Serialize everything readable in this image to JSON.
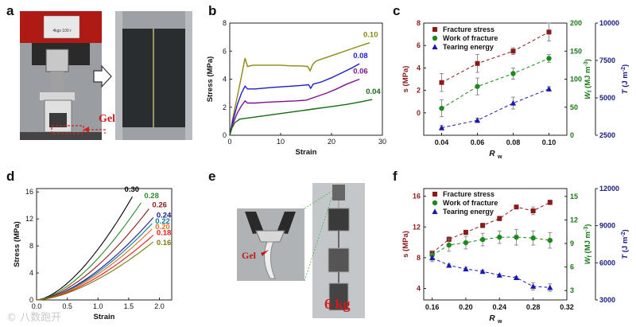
{
  "panels": {
    "a": "a",
    "b": "b",
    "c": "c",
    "d": "d",
    "e": "e",
    "f": "f"
  },
  "photos": {
    "a_gel_label": "Gel",
    "a_machine_text": "4kgs 100 r",
    "e_gel_label": "Gel",
    "e_weight_label": "6 kg"
  },
  "watermark": "© 八数跑开",
  "colors": {
    "olive": "#8a8a10",
    "blue": "#1a1ad0",
    "purple": "#801090",
    "green": "#156b15",
    "darkred": "#8b1a1a",
    "marker_red": "#8b1a1a",
    "marker_green": "#1a8a1a",
    "marker_blue": "#1a1ab0",
    "axis_green": "#1a7a1a",
    "axis_navy": "#1a1a80"
  },
  "chart_data": [
    {
      "id": "b",
      "type": "line",
      "xlabel": "Strain",
      "ylabel": "Stress (MPa)",
      "xlim": [
        0,
        30
      ],
      "ylim": [
        0,
        8
      ],
      "xticks": [
        0,
        10,
        20,
        30
      ],
      "yticks": [
        0,
        2,
        4,
        6,
        8
      ],
      "series": [
        {
          "name": "0.10",
          "color": "#8a8a10",
          "x": [
            0,
            0.6,
            1.5,
            2.3,
            3,
            3.5,
            4.5,
            6,
            8,
            10,
            12,
            14,
            15.3,
            15.8,
            16.3,
            17,
            19,
            21,
            23,
            25,
            27.5
          ],
          "y": [
            0,
            1.2,
            2.8,
            4.2,
            5.5,
            4.9,
            5,
            5,
            5,
            5,
            4.95,
            4.95,
            4.9,
            4.6,
            5.05,
            5.3,
            5.55,
            5.8,
            6.05,
            6.3,
            6.6
          ]
        },
        {
          "name": "0.08",
          "color": "#1a1ad0",
          "x": [
            0,
            0.6,
            1.5,
            2.3,
            3,
            3.5,
            5,
            8,
            10,
            12,
            14,
            15.5,
            15.9,
            16.4,
            18,
            20,
            22,
            24,
            25.5
          ],
          "y": [
            0,
            1,
            2.2,
            3,
            3.5,
            3.3,
            3.3,
            3.4,
            3.45,
            3.5,
            3.55,
            3.6,
            3.35,
            3.65,
            3.8,
            4.1,
            4.45,
            4.8,
            5.1
          ]
        },
        {
          "name": "0.06",
          "color": "#801090",
          "x": [
            0,
            0.6,
            1.5,
            2.3,
            3,
            3.5,
            5,
            7,
            10,
            13,
            15,
            17,
            19,
            21,
            23,
            25.5
          ],
          "y": [
            0,
            0.8,
            1.6,
            2.1,
            2.45,
            2.3,
            2.3,
            2.35,
            2.4,
            2.45,
            2.5,
            2.75,
            3,
            3.3,
            3.65,
            4
          ]
        },
        {
          "name": "0.04",
          "color": "#156b15",
          "x": [
            0,
            0.4,
            1,
            2,
            3,
            5,
            8,
            11,
            14,
            17,
            20,
            23,
            26,
            28
          ],
          "y": [
            0,
            0.5,
            0.9,
            1.15,
            1.2,
            1.3,
            1.45,
            1.6,
            1.75,
            1.9,
            2.05,
            2.2,
            2.4,
            2.55
          ]
        }
      ],
      "labels": [
        "0.10",
        "0.08",
        "0.06",
        "0.04"
      ]
    },
    {
      "id": "c",
      "type": "scatter",
      "xlabel": "R",
      "xlabel_sub": "w",
      "x": [
        0.04,
        0.06,
        0.08,
        0.1
      ],
      "xticks": [
        "0.04",
        "0.06",
        "0.08",
        "0.10"
      ],
      "xlim": [
        0.03,
        0.11
      ],
      "axes": [
        {
          "label": "s (MPa)",
          "ylim": [
            -2,
            8
          ],
          "ticks": [
            0,
            2,
            4,
            6,
            8
          ]
        },
        {
          "label": "Wf (MJ m-3)",
          "label_main": "W",
          "label_sub": "f",
          "label_unit": "(MJ m",
          "label_sup": "-3",
          "label_close": ")",
          "ylim": [
            0,
            200
          ],
          "ticks": [
            0,
            50,
            100,
            150,
            200
          ]
        },
        {
          "label": "T (J m-2)",
          "label_main": "T",
          "label_unit": "(J m",
          "label_sup": "-2",
          "label_close": ")",
          "ylim": [
            2500,
            10000
          ],
          "ticks": [
            2500,
            5000,
            7500,
            10000
          ]
        }
      ],
      "series": [
        {
          "name": "Fracture stress",
          "axis": 0,
          "marker": "square",
          "color": "#8b1a1a",
          "values": [
            2.7,
            4.4,
            5.5,
            7.2
          ],
          "err": [
            0.8,
            0.8,
            0.3,
            0.8
          ]
        },
        {
          "name": "Work of fracture",
          "axis": 1,
          "marker": "circle",
          "color": "#1a8a1a",
          "values": [
            48,
            87,
            110,
            137
          ],
          "err": [
            15,
            15,
            10,
            7
          ]
        },
        {
          "name": "Tearing energy",
          "axis": 2,
          "marker": "triangle",
          "color": "#1a1ab0",
          "values": [
            3000,
            3500,
            4650,
            5600
          ],
          "err": [
            150,
            150,
            400,
            150
          ]
        }
      ]
    },
    {
      "id": "d",
      "type": "line",
      "xlabel": "Strain",
      "ylabel": "Stress (MPa)",
      "xlim": [
        0,
        2.2
      ],
      "ylim": [
        0,
        16.5
      ],
      "xticks": [
        0,
        0.5,
        1.0,
        1.5,
        2.0
      ],
      "xtick_labels": [
        "0.0",
        "0.5",
        "1.0",
        "1.5",
        "2.0"
      ],
      "yticks": [
        0,
        4,
        8,
        12,
        16
      ],
      "series": [
        {
          "name": "0.30",
          "color": "#000000",
          "xend": 1.56,
          "yend": 15.3
        },
        {
          "name": "0.28",
          "color": "#2a8a2a",
          "xend": 1.7,
          "yend": 14.4
        },
        {
          "name": "0.26",
          "color": "#8b1a1a",
          "xend": 1.83,
          "yend": 13.5
        },
        {
          "name": "0.24",
          "color": "#1a1a90",
          "xend": 1.9,
          "yend": 12.2
        },
        {
          "name": "0.22",
          "color": "#0a7aa0",
          "xend": 1.88,
          "yend": 11.3
        },
        {
          "name": "0.20",
          "color": "#e0701a",
          "xend": 1.88,
          "yend": 10.5
        },
        {
          "name": "0.18",
          "color": "#e01a1a",
          "xend": 1.9,
          "yend": 9.6
        },
        {
          "name": "0.16",
          "color": "#7a7a10",
          "xend": 1.9,
          "yend": 8.6
        }
      ],
      "labels": [
        "0.30",
        "0.28",
        "0.26",
        "0.24",
        "0.22",
        "0.20",
        "0.18",
        "0.16"
      ]
    },
    {
      "id": "f",
      "type": "scatter",
      "xlabel": "R",
      "xlabel_sub": "w",
      "x": [
        0.16,
        0.18,
        0.2,
        0.22,
        0.24,
        0.26,
        0.28,
        0.3
      ],
      "xticks": [
        "0.16",
        "0.20",
        "0.24",
        "0.28",
        "0.32"
      ],
      "xtick_values": [
        0.16,
        0.2,
        0.24,
        0.28,
        0.32
      ],
      "xlim": [
        0.15,
        0.32
      ],
      "axes": [
        {
          "label": "s (MPa)",
          "ylim": [
            2.5,
            17
          ],
          "ticks": [
            4,
            8,
            12,
            16
          ]
        },
        {
          "label": "Wf (MJ m-3)",
          "label_main": "W",
          "label_sub": "f",
          "label_unit": "(MJ m",
          "label_sup": "-3",
          "label_close": ")",
          "ylim": [
            1.8,
            16
          ],
          "ticks": [
            3,
            6,
            9,
            12,
            15
          ]
        },
        {
          "label": "T (J m-2)",
          "label_main": "T",
          "label_unit": "(J m",
          "label_sup": "-2",
          "label_close": ")",
          "ylim": [
            3000,
            12000
          ],
          "ticks": [
            3000,
            6000,
            9000,
            12000
          ]
        }
      ],
      "series": [
        {
          "name": "Fracture stress",
          "axis": 0,
          "marker": "square",
          "color": "#8b1a1a",
          "values": [
            8.6,
            10.4,
            11.3,
            12.2,
            13.1,
            14.6,
            14.1,
            15.2
          ],
          "err": [
            0.3,
            0.3,
            0.3,
            0.3,
            0.3,
            0.2,
            0.5,
            0.3
          ]
        },
        {
          "name": "Work of fracture",
          "axis": 1,
          "marker": "circle",
          "color": "#1a8a1a",
          "values": [
            7.5,
            8.8,
            9.1,
            9.5,
            9.8,
            9.8,
            9.7,
            9.4
          ],
          "err": [
            0.5,
            0.8,
            0.8,
            0.8,
            0.8,
            1.0,
            0.9,
            1.0
          ]
        },
        {
          "name": "Tearing energy",
          "axis": 2,
          "marker": "triangle",
          "color": "#1a1ab0",
          "values": [
            6400,
            5800,
            5500,
            5300,
            5000,
            4800,
            4100,
            4000
          ],
          "err": [
            300,
            100,
            150,
            100,
            100,
            100,
            300,
            300
          ]
        }
      ]
    }
  ]
}
